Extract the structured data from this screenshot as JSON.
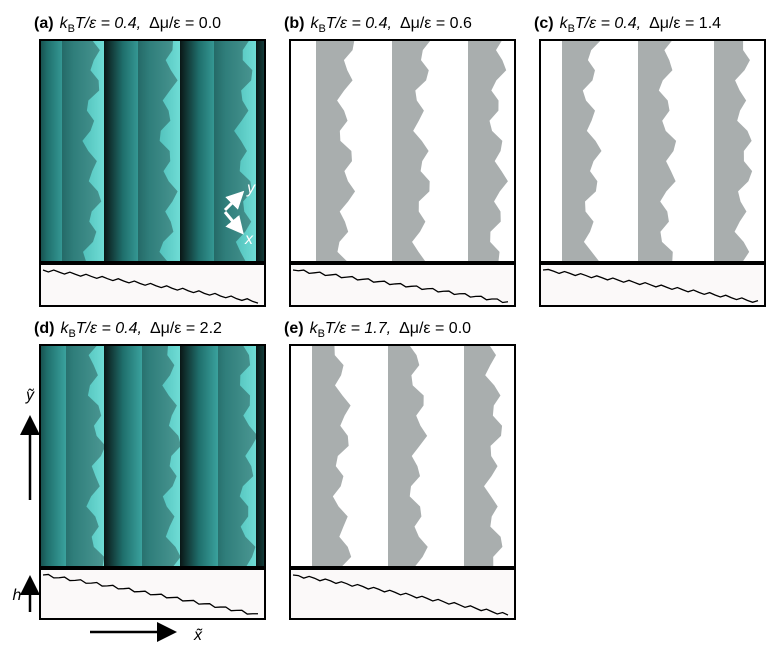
{
  "k": "k",
  "sub": "B",
  "panels": [
    {
      "letter": "(a)",
      "temp": "T/ε = 0.4,",
      "chem": "Δμ/ε = 0.0"
    },
    {
      "letter": "(b)",
      "temp": "T/ε = 0.4,",
      "chem": "Δμ/ε = 0.6"
    },
    {
      "letter": "(c)",
      "temp": "T/ε = 0.4,",
      "chem": "Δμ/ε = 1.4"
    },
    {
      "letter": "(d)",
      "temp": "T/ε = 0.4,",
      "chem": "Δμ/ε = 2.2"
    },
    {
      "letter": "(e)",
      "temp": "T/ε = 1.7,",
      "chem": "Δμ/ε = 0.0"
    }
  ],
  "axes": {
    "y_tilde": "ỹ",
    "x_tilde": "x̃",
    "h": "h",
    "inset_y": "y",
    "inset_x": "x"
  }
}
